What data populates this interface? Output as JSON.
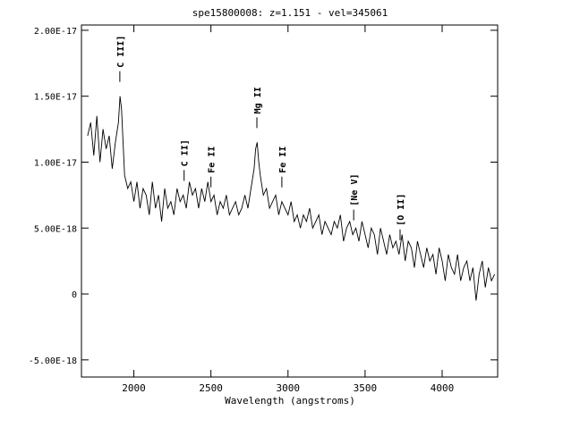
{
  "chart_data": {
    "type": "line",
    "title": "spe15800008: z=1.151 - vel=345061",
    "xlabel": "Wavelength (angstroms)",
    "ylabel": "",
    "xlim": [
      1660,
      4360
    ],
    "ylim": [
      -6.3e-18,
      2.04e-17
    ],
    "x_ticks": [
      2000,
      2500,
      3000,
      3500,
      4000
    ],
    "x_tick_labels": [
      "2000",
      "2500",
      "3000",
      "3500",
      "4000"
    ],
    "y_ticks": [
      -5e-18,
      0,
      5e-18,
      1e-17,
      1.5e-17,
      2e-17
    ],
    "y_tick_labels": [
      "-5.00E-18",
      "0",
      "5.00E-18",
      "1.00E-17",
      "1.50E-17",
      "2.00E-17"
    ],
    "grid": false,
    "line_color": "#000000",
    "series": [
      {
        "name": "",
        "x": [
          1700,
          1720,
          1740,
          1760,
          1780,
          1800,
          1820,
          1840,
          1860,
          1880,
          1900,
          1910,
          1920,
          1940,
          1960,
          1980,
          2000,
          2020,
          2040,
          2060,
          2080,
          2100,
          2120,
          2140,
          2160,
          2180,
          2200,
          2220,
          2240,
          2260,
          2280,
          2300,
          2320,
          2340,
          2360,
          2380,
          2400,
          2420,
          2440,
          2460,
          2480,
          2500,
          2520,
          2540,
          2560,
          2580,
          2600,
          2620,
          2640,
          2660,
          2680,
          2700,
          2720,
          2740,
          2760,
          2780,
          2790,
          2800,
          2810,
          2820,
          2840,
          2860,
          2880,
          2900,
          2920,
          2940,
          2960,
          2980,
          3000,
          3020,
          3040,
          3060,
          3080,
          3100,
          3120,
          3140,
          3160,
          3180,
          3200,
          3220,
          3240,
          3260,
          3280,
          3300,
          3320,
          3340,
          3360,
          3380,
          3400,
          3420,
          3440,
          3460,
          3480,
          3500,
          3520,
          3540,
          3560,
          3580,
          3600,
          3620,
          3640,
          3660,
          3680,
          3700,
          3720,
          3740,
          3760,
          3780,
          3800,
          3820,
          3840,
          3860,
          3880,
          3900,
          3920,
          3940,
          3960,
          3980,
          4000,
          4020,
          4040,
          4060,
          4080,
          4100,
          4120,
          4140,
          4160,
          4180,
          4200,
          4220,
          4240,
          4260,
          4280,
          4300,
          4320,
          4340
        ],
        "y": [
          1.2e-17,
          1.3e-17,
          1.05e-17,
          1.35e-17,
          1e-17,
          1.25e-17,
          1.1e-17,
          1.2e-17,
          9.5e-18,
          1.15e-17,
          1.3e-17,
          1.5e-17,
          1.4e-17,
          9e-18,
          8e-18,
          8.5e-18,
          7e-18,
          8.5e-18,
          6.5e-18,
          8e-18,
          7.5e-18,
          6e-18,
          8.5e-18,
          6.5e-18,
          7.5e-18,
          5.5e-18,
          8e-18,
          6.5e-18,
          7e-18,
          6e-18,
          8e-18,
          7e-18,
          7.5e-18,
          6.5e-18,
          8.5e-18,
          7.5e-18,
          8e-18,
          6.5e-18,
          8e-18,
          7e-18,
          8.5e-18,
          7e-18,
          7.5e-18,
          6e-18,
          7e-18,
          6.5e-18,
          7.5e-18,
          6e-18,
          6.5e-18,
          7e-18,
          6e-18,
          6.5e-18,
          7.5e-18,
          6.5e-18,
          8e-18,
          9.5e-18,
          1.1e-17,
          1.15e-17,
          1e-17,
          9e-18,
          7.5e-18,
          8e-18,
          6.5e-18,
          7e-18,
          7.5e-18,
          6e-18,
          7e-18,
          6.5e-18,
          6e-18,
          7e-18,
          5.5e-18,
          6e-18,
          5e-18,
          6e-18,
          5.5e-18,
          6.5e-18,
          5e-18,
          5.5e-18,
          6e-18,
          4.5e-18,
          5.5e-18,
          5e-18,
          4.5e-18,
          5.5e-18,
          5e-18,
          6e-18,
          4e-18,
          5e-18,
          5.5e-18,
          4.5e-18,
          5e-18,
          4e-18,
          5.5e-18,
          4.5e-18,
          3.5e-18,
          5e-18,
          4.5e-18,
          3e-18,
          5e-18,
          4e-18,
          3e-18,
          4.5e-18,
          3.5e-18,
          4e-18,
          3e-18,
          4.5e-18,
          2.5e-18,
          4e-18,
          3.5e-18,
          2e-18,
          4e-18,
          3e-18,
          2e-18,
          3.5e-18,
          2.5e-18,
          3e-18,
          1.5e-18,
          3.5e-18,
          2.5e-18,
          1e-18,
          3e-18,
          2e-18,
          1.5e-18,
          3e-18,
          1e-18,
          2e-18,
          2.5e-18,
          1e-18,
          2e-18,
          -5e-19,
          1.5e-18,
          2.5e-18,
          5e-19,
          2e-18,
          1e-18,
          1.5e-18
        ]
      }
    ],
    "annotations": [
      {
        "label": "C III]",
        "x": 1909
      },
      {
        "label": "C II]",
        "x": 2326
      },
      {
        "label": "Fe II",
        "x": 2500
      },
      {
        "label": "Mg II",
        "x": 2798
      },
      {
        "label": "Fe II",
        "x": 2960
      },
      {
        "label": "[Ne V]",
        "x": 3426
      },
      {
        "label": "[O II]",
        "x": 3727
      }
    ]
  }
}
